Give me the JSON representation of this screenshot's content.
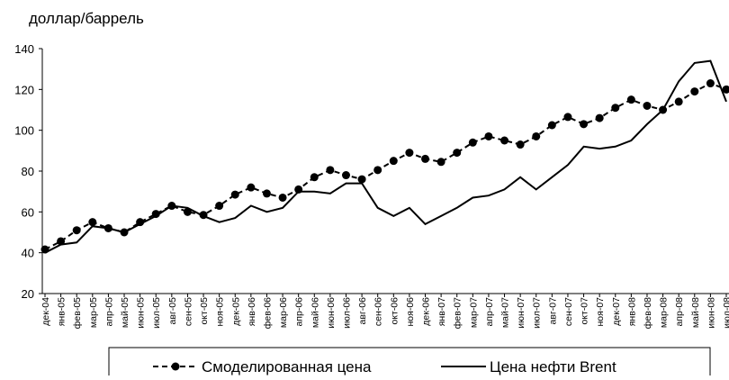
{
  "chart_data": {
    "type": "line",
    "y_label": "доллар/баррель",
    "categories": [
      "дек-04",
      "янв-05",
      "фев-05",
      "мар-05",
      "апр-05",
      "май-05",
      "июн-05",
      "июл-05",
      "авг-05",
      "сен-05",
      "окт-05",
      "ноя-05",
      "дек-05",
      "янв-06",
      "фев-06",
      "мар-06",
      "апр-06",
      "май-06",
      "июн-06",
      "июл-06",
      "авг-06",
      "сен-06",
      "окт-06",
      "ноя-06",
      "дек-06",
      "янв-07",
      "фев-07",
      "мар-07",
      "апр-07",
      "май-07",
      "июн-07",
      "июл-07",
      "авг-07",
      "сен-07",
      "окт-07",
      "ноя-07",
      "дек-07",
      "янв-08",
      "фев-08",
      "мар-08",
      "апр-08",
      "май-08",
      "июн-08",
      "июл-08"
    ],
    "series": [
      {
        "name": "Смоделированная цена",
        "color": "#000000",
        "dashed": true,
        "markers": true,
        "values": [
          41.6,
          45.6,
          51,
          55,
          52,
          50,
          55,
          59,
          63,
          60,
          58.5,
          63,
          68.5,
          72,
          69,
          67,
          71,
          77,
          80.5,
          78,
          76,
          80.5,
          85,
          89,
          86,
          84.5,
          89,
          94,
          97,
          95,
          93,
          97,
          102.5,
          106.5,
          103,
          106,
          111,
          115,
          112,
          110,
          114,
          119,
          123,
          120
        ]
      },
      {
        "name": "Цена нефти Brent",
        "color": "#000000",
        "dashed": false,
        "markers": false,
        "values": [
          40,
          44,
          45,
          53,
          52,
          50,
          54,
          58,
          63,
          62,
          58,
          55,
          57,
          63,
          60,
          62,
          70,
          70,
          69,
          74,
          74,
          62,
          58,
          62,
          54,
          58,
          62,
          67,
          68,
          71,
          77,
          71,
          77,
          83,
          92,
          91,
          92,
          95,
          103,
          110,
          124,
          133,
          134,
          114
        ]
      }
    ],
    "ylim": [
      20,
      140
    ],
    "yticks": [
      20,
      40,
      60,
      80,
      100,
      120,
      140
    ],
    "grid": false
  }
}
